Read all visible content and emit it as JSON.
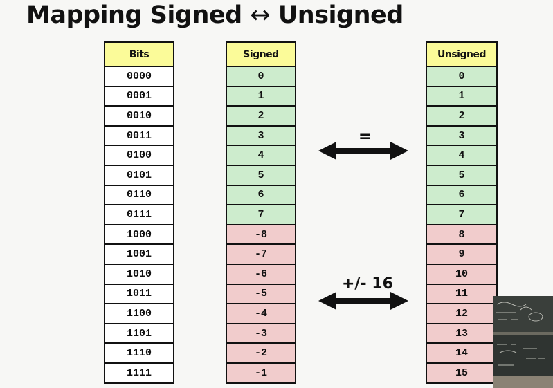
{
  "slide": {
    "title_left": "Mapping Signed",
    "title_arrow": "↔",
    "title_right": "Unsigned"
  },
  "bits_table": {
    "header": "Bits",
    "rows": [
      "0000",
      "0001",
      "0010",
      "0011",
      "0100",
      "0101",
      "0110",
      "0111",
      "1000",
      "1001",
      "1010",
      "1011",
      "1100",
      "1101",
      "1110",
      "1111"
    ]
  },
  "signed_table": {
    "header": "Signed",
    "rows": [
      "0",
      "1",
      "2",
      "3",
      "4",
      "5",
      "6",
      "7",
      "-8",
      "-7",
      "-6",
      "-5",
      "-4",
      "-3",
      "-2",
      "-1"
    ]
  },
  "unsigned_table": {
    "header": "Unsigned",
    "rows": [
      "0",
      "1",
      "2",
      "3",
      "4",
      "5",
      "6",
      "7",
      "8",
      "9",
      "10",
      "11",
      "12",
      "13",
      "14",
      "15"
    ]
  },
  "arrows": {
    "top_label": "=",
    "bottom_label": "+/- 16"
  },
  "colors": {
    "header_yellow": "#fbfb99",
    "positive_green": "#cdeccd",
    "negative_red": "#f1cccc"
  },
  "inset": {
    "icon": "lecture-video-thumbnail"
  }
}
